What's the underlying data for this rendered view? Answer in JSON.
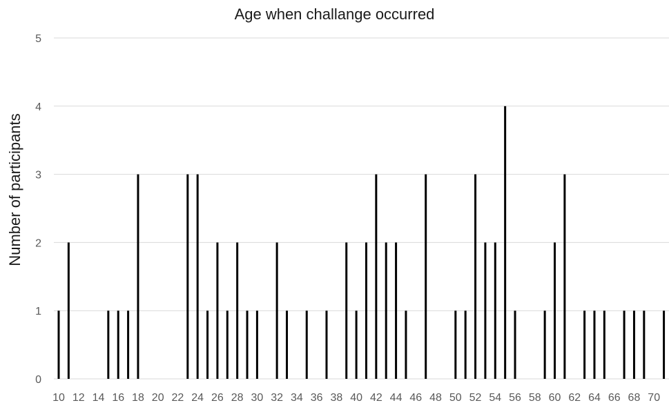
{
  "chart_data": {
    "type": "bar",
    "title": "Age when challange occurred",
    "xlabel": "",
    "ylabel": "Number of participants",
    "ylim": [
      0,
      5
    ],
    "yticks": [
      0,
      1,
      2,
      3,
      4,
      5
    ],
    "x_tick_labels": [
      "10",
      "12",
      "14",
      "16",
      "18",
      "20",
      "22",
      "24",
      "26",
      "28",
      "30",
      "32",
      "34",
      "36",
      "38",
      "40",
      "42",
      "44",
      "46",
      "48",
      "50",
      "52",
      "54",
      "56",
      "58",
      "60",
      "62",
      "64",
      "66",
      "68",
      "70"
    ],
    "grid": true,
    "bar_color": "#000000",
    "categories": [
      10,
      11,
      12,
      13,
      14,
      15,
      16,
      17,
      18,
      19,
      20,
      21,
      22,
      23,
      24,
      25,
      26,
      27,
      28,
      29,
      30,
      31,
      32,
      33,
      34,
      35,
      36,
      37,
      38,
      39,
      40,
      41,
      42,
      43,
      44,
      45,
      46,
      47,
      48,
      49,
      50,
      51,
      52,
      53,
      54,
      55,
      56,
      57,
      58,
      59,
      60,
      61,
      62,
      63,
      64,
      65,
      66,
      67,
      68,
      69,
      70,
      71
    ],
    "values": [
      1,
      2,
      0,
      0,
      0,
      1,
      1,
      1,
      3,
      0,
      0,
      0,
      0,
      3,
      3,
      1,
      2,
      1,
      2,
      1,
      1,
      0,
      2,
      1,
      0,
      1,
      0,
      1,
      0,
      2,
      1,
      2,
      3,
      2,
      2,
      1,
      0,
      3,
      0,
      0,
      1,
      1,
      3,
      2,
      2,
      4,
      1,
      0,
      0,
      1,
      2,
      3,
      0,
      1,
      1,
      1,
      0,
      1,
      1,
      1,
      0,
      1
    ]
  }
}
